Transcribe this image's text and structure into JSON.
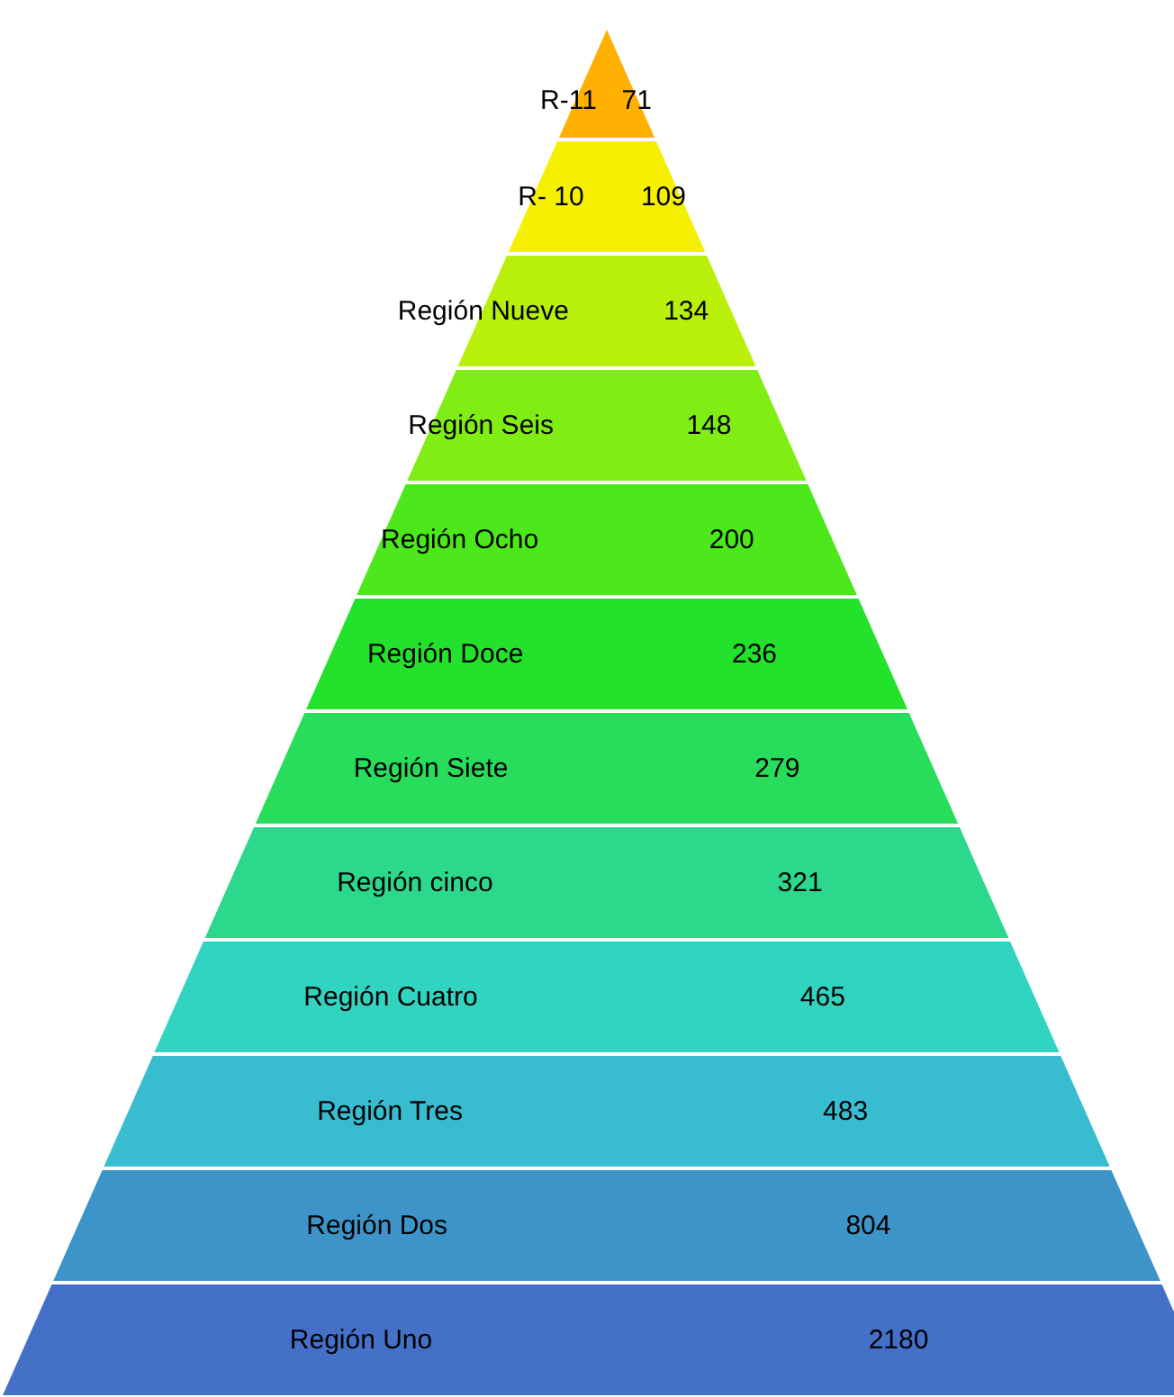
{
  "chart_data": {
    "type": "other",
    "categories": [
      "R-11",
      "R- 10",
      "Región Nueve",
      "Región Seis",
      "Región Ocho",
      "Región Doce",
      "Región Siete",
      "Región cinco",
      "Región Cuatro",
      "Región Tres",
      "Región Dos",
      "Región Uno"
    ],
    "values": [
      71,
      109,
      134,
      148,
      200,
      236,
      279,
      321,
      465,
      483,
      804,
      2180
    ],
    "colors": [
      "#ffb000",
      "#f5f000",
      "#b8f00c",
      "#80ee14",
      "#4ce81c",
      "#22e22c",
      "#28dc5c",
      "#2cd88c",
      "#30d4c0",
      "#38bcd0",
      "#3c94c8",
      "#4470c8"
    ],
    "data_labels": true
  }
}
